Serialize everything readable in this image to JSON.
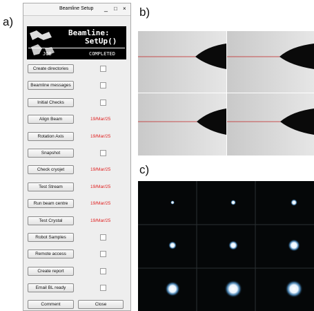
{
  "panel_labels": [
    "a)",
    "b)",
    "c)"
  ],
  "window": {
    "title": "Beamline Setup",
    "banner": {
      "line1": "Beamline:",
      "line2": "SetUp()"
    },
    "headers": [
      "JOB",
      "COMPLETED"
    ],
    "rows": [
      {
        "label": "Create directories",
        "completed": null
      },
      {
        "label": "Beamline messages",
        "completed": null
      },
      {
        "label": "Initial Checks",
        "completed": null
      },
      {
        "label": "Align Beam",
        "completed": "19/Mar/25"
      },
      {
        "label": "Rotation Axis",
        "completed": "19/Mar/25"
      },
      {
        "label": "Snapshot",
        "completed": null
      },
      {
        "label": "Check cryojet",
        "completed": "19/Mar/25"
      },
      {
        "label": "Test Stream",
        "completed": "19/Mar/25"
      },
      {
        "label": "Run beam centre",
        "completed": "19/Mar/25"
      },
      {
        "label": "Test Crystal",
        "completed": "19/Mar/25"
      },
      {
        "label": "Robot Samples",
        "completed": null
      },
      {
        "label": "Remote access",
        "completed": null
      },
      {
        "label": "Create report",
        "completed": null
      },
      {
        "label": "Email BL ready",
        "completed": null
      }
    ],
    "footer_buttons": [
      "Comment",
      "Close"
    ]
  }
}
